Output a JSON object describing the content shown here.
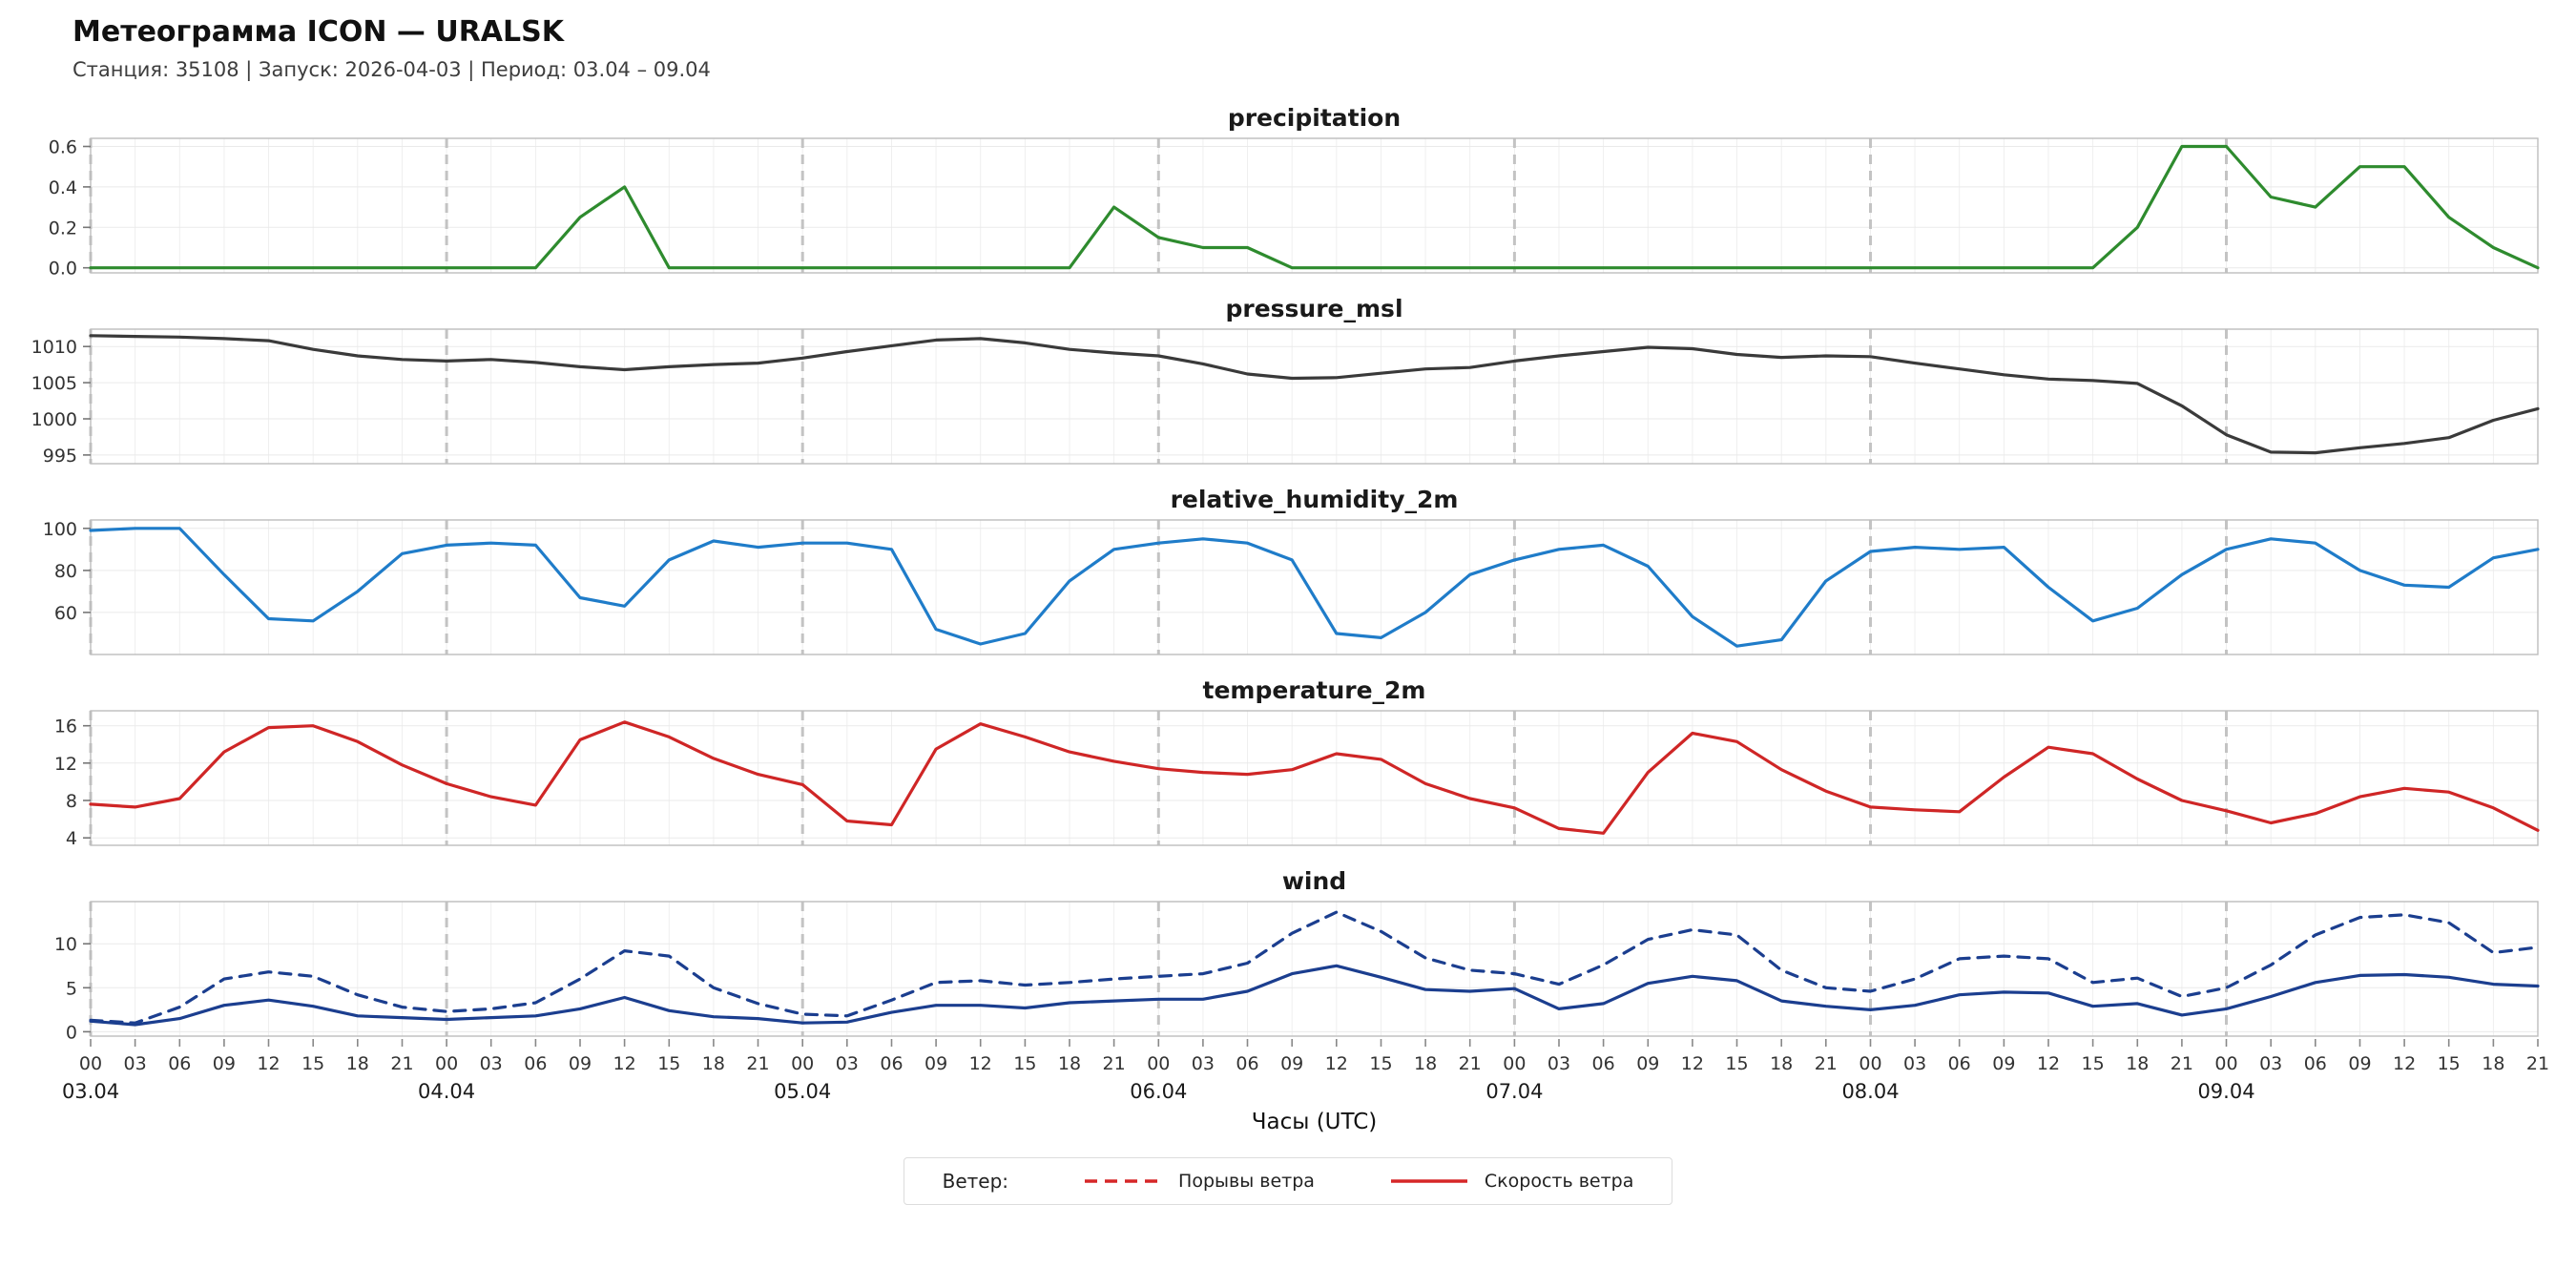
{
  "header": {
    "title": "Метеограмма ICON — URALSK",
    "subtitle": "Станция: 35108  | Запуск: 2026-04-03  | Период: 03.04 – 09.04"
  },
  "xaxis": {
    "label": "Часы (UTC)",
    "hour_tick_offsets": [
      0,
      3,
      6,
      9,
      12,
      15,
      18,
      21
    ],
    "hour_tick_labels": [
      "00",
      "03",
      "06",
      "09",
      "12",
      "15",
      "18",
      "21"
    ],
    "day_labels": [
      "03.04",
      "04.04",
      "05.04",
      "06.04",
      "07.04",
      "08.04",
      "09.04"
    ]
  },
  "legend": {
    "prefix": "Ветер:",
    "items": [
      {
        "label": "Порывы ветра",
        "style": "dashed",
        "color": "#d62728"
      },
      {
        "label": "Скорость ветра",
        "style": "solid",
        "color": "#d62728"
      }
    ]
  },
  "chart_common": {
    "x_min": 0,
    "x_max": 165,
    "x_unit": "hours since 03.04 00:00 UTC",
    "x_hours": [
      0,
      3,
      6,
      9,
      12,
      15,
      18,
      21,
      24,
      27,
      30,
      33,
      36,
      39,
      42,
      45,
      48,
      51,
      54,
      57,
      60,
      63,
      66,
      69,
      72,
      75,
      78,
      81,
      84,
      87,
      90,
      93,
      96,
      99,
      102,
      105,
      108,
      111,
      114,
      117,
      120,
      123,
      126,
      129,
      132,
      135,
      138,
      141,
      144,
      147,
      150,
      153,
      156,
      159,
      162,
      165
    ],
    "day_starts": [
      0,
      24,
      48,
      72,
      96,
      120,
      144
    ],
    "grid": true,
    "day_divider_color": "#c3c3c3"
  },
  "chart_data": [
    {
      "type": "line",
      "title": "precipitation",
      "color": "#2e8b2e",
      "style": "solid",
      "ylim": [
        -0.025,
        0.64
      ],
      "ytick_values": [
        0.0,
        0.2,
        0.4,
        0.6
      ],
      "ytick_labels": [
        "0.0",
        "0.2",
        "0.4",
        "0.6"
      ],
      "values": [
        0,
        0,
        0,
        0,
        0,
        0,
        0,
        0,
        0,
        0,
        0,
        0.25,
        0.4,
        0,
        0,
        0,
        0,
        0,
        0,
        0,
        0,
        0,
        0,
        0.3,
        0.15,
        0.1,
        0.1,
        0,
        0,
        0,
        0,
        0,
        0,
        0,
        0,
        0,
        0,
        0,
        0,
        0,
        0,
        0,
        0,
        0,
        0,
        0,
        0.2,
        0.6,
        0.6,
        0.35,
        0.3,
        0.5,
        0.5,
        0.25,
        0.1,
        0
      ]
    },
    {
      "type": "line",
      "title": "pressure_msl",
      "color": "#3a3a3a",
      "style": "solid",
      "ylim": [
        993.8,
        1012.4
      ],
      "ytick_values": [
        995,
        1000,
        1005,
        1010
      ],
      "ytick_labels": [
        "995",
        "1000",
        "1005",
        "1010"
      ],
      "values": [
        1011.5,
        1011.4,
        1011.3,
        1011.1,
        1010.8,
        1009.6,
        1008.7,
        1008.2,
        1008.0,
        1008.2,
        1007.8,
        1007.2,
        1006.8,
        1007.2,
        1007.5,
        1007.7,
        1008.4,
        1009.3,
        1010.1,
        1010.9,
        1011.1,
        1010.5,
        1009.6,
        1009.1,
        1008.7,
        1007.6,
        1006.2,
        1005.6,
        1005.7,
        1006.3,
        1006.9,
        1007.1,
        1008.0,
        1008.7,
        1009.3,
        1009.9,
        1009.7,
        1008.9,
        1008.5,
        1008.7,
        1008.6,
        1007.7,
        1006.9,
        1006.1,
        1005.5,
        1005.3,
        1004.9,
        1001.8,
        997.8,
        995.4,
        995.3,
        996.0,
        996.6,
        997.4,
        999.8,
        1001.4
      ]
    },
    {
      "type": "line",
      "title": "relative_humidity_2m",
      "color": "#1f7cc9",
      "style": "solid",
      "ylim": [
        40,
        104
      ],
      "ytick_values": [
        60,
        80,
        100
      ],
      "ytick_labels": [
        "60",
        "80",
        "100"
      ],
      "values": [
        99,
        100,
        100,
        78,
        57,
        56,
        70,
        88,
        92,
        93,
        92,
        67,
        63,
        85,
        94,
        91,
        93,
        93,
        90,
        52,
        45,
        50,
        75,
        90,
        93,
        95,
        93,
        85,
        50,
        48,
        60,
        78,
        85,
        90,
        92,
        82,
        58,
        44,
        47,
        75,
        89,
        91,
        90,
        91,
        72,
        56,
        62,
        78,
        90,
        95,
        93,
        80,
        73,
        72,
        86,
        90
      ]
    },
    {
      "type": "line",
      "title": "temperature_2m",
      "color": "#cf2626",
      "style": "solid",
      "ylim": [
        3.2,
        17.6
      ],
      "ytick_values": [
        4,
        8,
        12,
        16
      ],
      "ytick_labels": [
        "4",
        "8",
        "12",
        "16"
      ],
      "values": [
        7.6,
        7.3,
        8.2,
        13.2,
        15.8,
        16.0,
        14.3,
        11.8,
        9.8,
        8.4,
        7.5,
        14.5,
        16.4,
        14.8,
        12.5,
        10.8,
        9.7,
        5.8,
        5.4,
        13.5,
        16.2,
        14.8,
        13.2,
        12.2,
        11.4,
        11.0,
        10.8,
        11.3,
        13.0,
        12.4,
        9.8,
        8.2,
        7.2,
        5.0,
        4.5,
        11.0,
        15.2,
        14.3,
        11.3,
        9.0,
        7.3,
        7.0,
        6.8,
        10.5,
        13.7,
        13.0,
        10.3,
        8.0,
        6.9,
        5.6,
        6.6,
        8.4,
        9.3,
        8.9,
        7.2,
        4.8
      ]
    },
    {
      "type": "line",
      "title": "wind",
      "ylim": [
        -0.5,
        14.8
      ],
      "ytick_values": [
        0,
        5,
        10
      ],
      "ytick_labels": [
        "0",
        "5",
        "10"
      ],
      "series": [
        {
          "name": "Скорость ветра",
          "style": "solid",
          "color": "#1b3e8f",
          "values": [
            1.2,
            0.8,
            1.5,
            3.0,
            3.6,
            2.9,
            1.8,
            1.6,
            1.4,
            1.6,
            1.8,
            2.6,
            3.9,
            2.4,
            1.7,
            1.5,
            1.0,
            1.1,
            2.2,
            3.0,
            3.0,
            2.7,
            3.3,
            3.5,
            3.7,
            3.7,
            4.6,
            6.6,
            7.5,
            6.2,
            4.8,
            4.6,
            4.9,
            2.6,
            3.2,
            5.5,
            6.3,
            5.8,
            3.5,
            2.9,
            2.5,
            3.0,
            4.2,
            4.5,
            4.4,
            2.9,
            3.2,
            1.9,
            2.6,
            4.0,
            5.6,
            6.4,
            6.5,
            6.2,
            5.4,
            5.2
          ]
        },
        {
          "name": "Порывы ветра",
          "style": "dashed",
          "color": "#1b3e8f",
          "values": [
            1.3,
            1.0,
            2.8,
            6.0,
            6.8,
            6.3,
            4.2,
            2.8,
            2.3,
            2.6,
            3.3,
            6.0,
            9.2,
            8.6,
            5.0,
            3.2,
            2.0,
            1.8,
            3.6,
            5.6,
            5.8,
            5.3,
            5.6,
            6.0,
            6.3,
            6.6,
            7.8,
            11.2,
            13.6,
            11.4,
            8.4,
            7.0,
            6.6,
            5.4,
            7.6,
            10.5,
            11.6,
            11.0,
            7.0,
            5.0,
            4.6,
            6.0,
            8.3,
            8.6,
            8.3,
            5.6,
            6.1,
            4.0,
            5.0,
            7.6,
            11.0,
            13.0,
            13.3,
            12.4,
            9.0,
            9.6
          ]
        }
      ]
    }
  ]
}
